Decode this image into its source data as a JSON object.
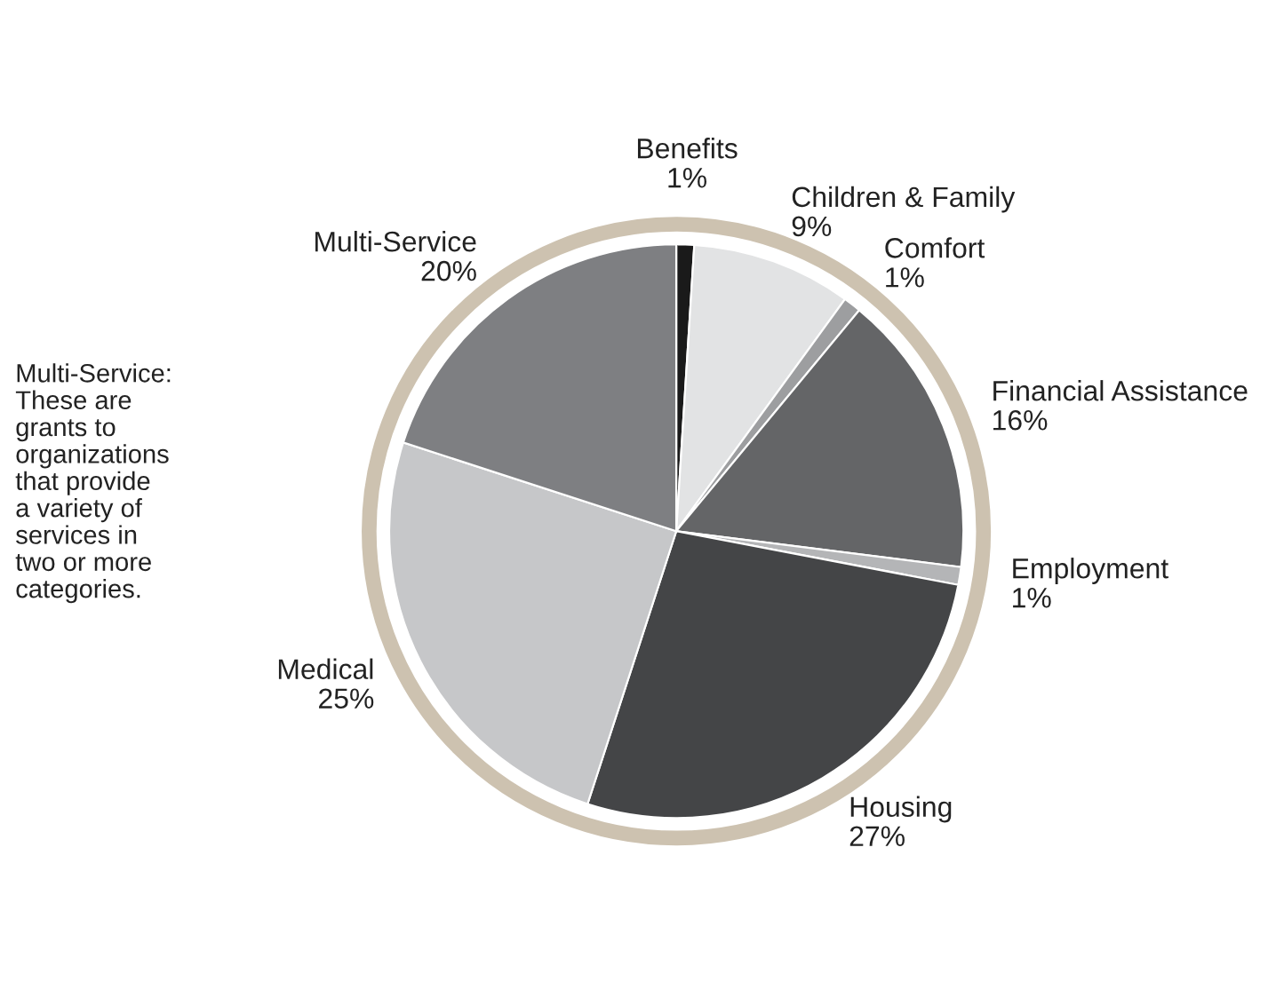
{
  "chart_data": {
    "type": "pie",
    "categories": [
      "Benefits",
      "Children & Family",
      "Comfort",
      "Financial Assistance",
      "Employment",
      "Housing",
      "Medical",
      "Multi-Service"
    ],
    "values": [
      1,
      9,
      1,
      16,
      1,
      27,
      25,
      20
    ],
    "colors": [
      "#1a1a1a",
      "#e2e3e4",
      "#9d9ea0",
      "#646567",
      "#b4b5b7",
      "#444547",
      "#c6c7c9",
      "#7e7f82"
    ],
    "value_labels": [
      "1%",
      "9%",
      "1%",
      "16%",
      "1%",
      "27%",
      "25%",
      "20%"
    ],
    "annotations": [
      "Multi-Service:\nThese are\ngrants to\norganizations\nthat provide\na variety of\nservices in\ntwo or more\ncategories."
    ],
    "legend": false
  }
}
